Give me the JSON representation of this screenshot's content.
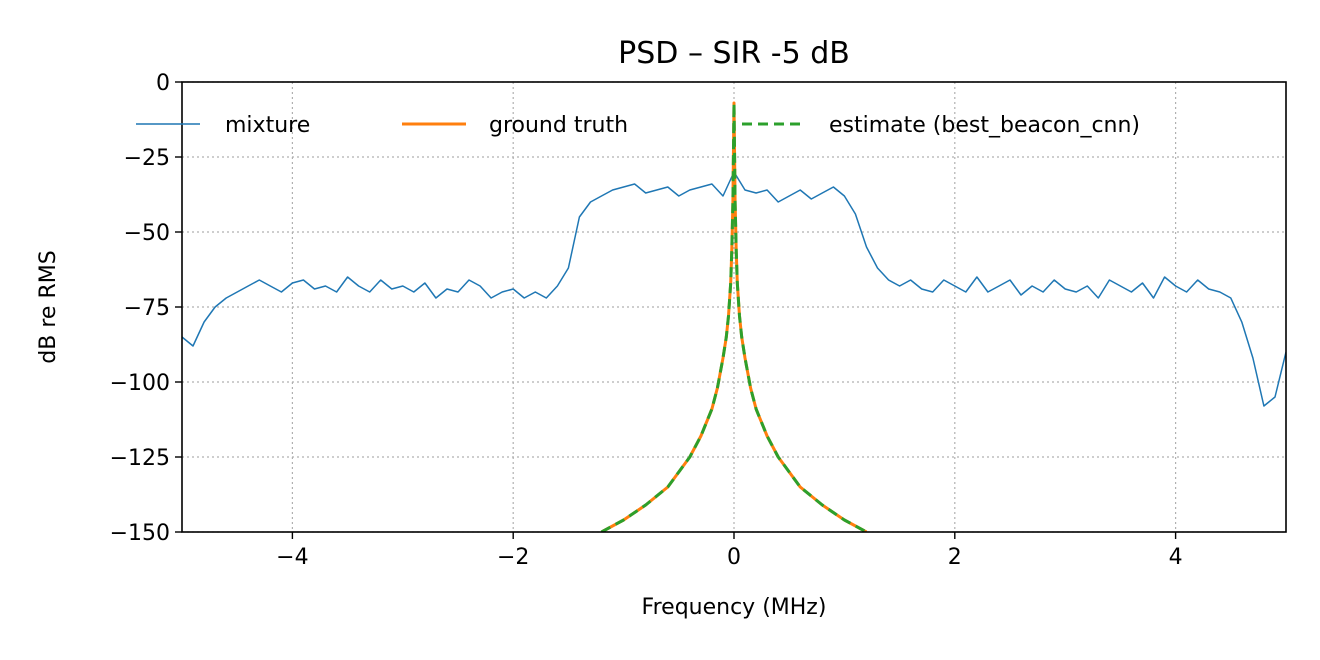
{
  "chart_data": {
    "type": "line",
    "title": "PSD – SIR -5 dB",
    "xlabel": "Frequency (MHz)",
    "ylabel": "dB re RMS",
    "xlim": [
      -5,
      5
    ],
    "ylim": [
      -150,
      0
    ],
    "xticks": [
      -4,
      -2,
      0,
      2,
      4
    ],
    "xtick_labels": [
      "−4",
      "−2",
      "0",
      "2",
      "4"
    ],
    "yticks": [
      0,
      -25,
      -50,
      -75,
      -100,
      -125,
      -150
    ],
    "ytick_labels": [
      "0",
      "−25",
      "−50",
      "−75",
      "−100",
      "−125",
      "−150"
    ],
    "grid": true,
    "legend_position": "top",
    "series": [
      {
        "name": "mixture",
        "color": "#1f77b4",
        "style": "solid-thin",
        "x": [
          -5.0,
          -4.9,
          -4.8,
          -4.7,
          -4.6,
          -4.5,
          -4.4,
          -4.3,
          -4.2,
          -4.1,
          -4.0,
          -3.9,
          -3.8,
          -3.7,
          -3.6,
          -3.5,
          -3.4,
          -3.3,
          -3.2,
          -3.1,
          -3.0,
          -2.9,
          -2.8,
          -2.7,
          -2.6,
          -2.5,
          -2.4,
          -2.3,
          -2.2,
          -2.1,
          -2.0,
          -1.9,
          -1.8,
          -1.7,
          -1.6,
          -1.5,
          -1.4,
          -1.3,
          -1.2,
          -1.1,
          -1.0,
          -0.9,
          -0.8,
          -0.7,
          -0.6,
          -0.5,
          -0.4,
          -0.3,
          -0.2,
          -0.1,
          0.0,
          0.1,
          0.2,
          0.3,
          0.4,
          0.5,
          0.6,
          0.7,
          0.8,
          0.9,
          1.0,
          1.1,
          1.2,
          1.3,
          1.4,
          1.5,
          1.6,
          1.7,
          1.8,
          1.9,
          2.0,
          2.1,
          2.2,
          2.3,
          2.4,
          2.5,
          2.6,
          2.7,
          2.8,
          2.9,
          3.0,
          3.1,
          3.2,
          3.3,
          3.4,
          3.5,
          3.6,
          3.7,
          3.8,
          3.9,
          4.0,
          4.1,
          4.2,
          4.3,
          4.4,
          4.5,
          4.6,
          4.7,
          4.8,
          4.9,
          5.0
        ],
        "y": [
          -85,
          -88,
          -80,
          -75,
          -72,
          -70,
          -68,
          -66,
          -68,
          -70,
          -67,
          -66,
          -69,
          -68,
          -70,
          -65,
          -68,
          -70,
          -66,
          -69,
          -68,
          -70,
          -67,
          -72,
          -69,
          -70,
          -66,
          -68,
          -72,
          -70,
          -69,
          -72,
          -70,
          -72,
          -68,
          -62,
          -45,
          -40,
          -38,
          -36,
          -35,
          -34,
          -37,
          -36,
          -35,
          -38,
          -36,
          -35,
          -34,
          -38,
          -30,
          -36,
          -37,
          -36,
          -40,
          -38,
          -36,
          -39,
          -37,
          -35,
          -38,
          -44,
          -55,
          -62,
          -66,
          -68,
          -66,
          -69,
          -70,
          -66,
          -68,
          -70,
          -65,
          -70,
          -68,
          -66,
          -71,
          -68,
          -70,
          -66,
          -69,
          -70,
          -68,
          -72,
          -66,
          -68,
          -70,
          -67,
          -72,
          -65,
          -68,
          -70,
          -66,
          -69,
          -70,
          -72,
          -80,
          -92,
          -108,
          -105,
          -90
        ]
      },
      {
        "name": "ground truth",
        "color": "#ff7f0e",
        "style": "solid",
        "x": [
          -1.2,
          -1.0,
          -0.8,
          -0.6,
          -0.4,
          -0.3,
          -0.2,
          -0.15,
          -0.1,
          -0.07,
          -0.05,
          -0.03,
          -0.02,
          -0.01,
          0.0,
          0.01,
          0.02,
          0.03,
          0.05,
          0.07,
          0.1,
          0.15,
          0.2,
          0.3,
          0.4,
          0.6,
          0.8,
          1.0,
          1.2
        ],
        "y": [
          -150,
          -146,
          -141,
          -135,
          -125,
          -118,
          -109,
          -102,
          -92,
          -85,
          -78,
          -67,
          -56,
          -40,
          -7,
          -40,
          -56,
          -67,
          -78,
          -85,
          -92,
          -102,
          -109,
          -118,
          -125,
          -135,
          -141,
          -146,
          -150
        ]
      },
      {
        "name": "estimate (best_beacon_cnn)",
        "color": "#2ca02c",
        "style": "dashed",
        "x": [
          -1.2,
          -1.0,
          -0.8,
          -0.6,
          -0.4,
          -0.3,
          -0.2,
          -0.15,
          -0.1,
          -0.07,
          -0.05,
          -0.03,
          -0.02,
          -0.01,
          0.0,
          0.01,
          0.02,
          0.03,
          0.05,
          0.07,
          0.1,
          0.15,
          0.2,
          0.3,
          0.4,
          0.6,
          0.8,
          1.0,
          1.2
        ],
        "y": [
          -150,
          -146,
          -141,
          -135,
          -125,
          -118,
          -109,
          -102,
          -92,
          -85,
          -78,
          -67,
          -56,
          -40,
          -7,
          -40,
          -56,
          -67,
          -78,
          -85,
          -92,
          -102,
          -109,
          -118,
          -125,
          -135,
          -141,
          -146,
          -150
        ]
      }
    ]
  }
}
